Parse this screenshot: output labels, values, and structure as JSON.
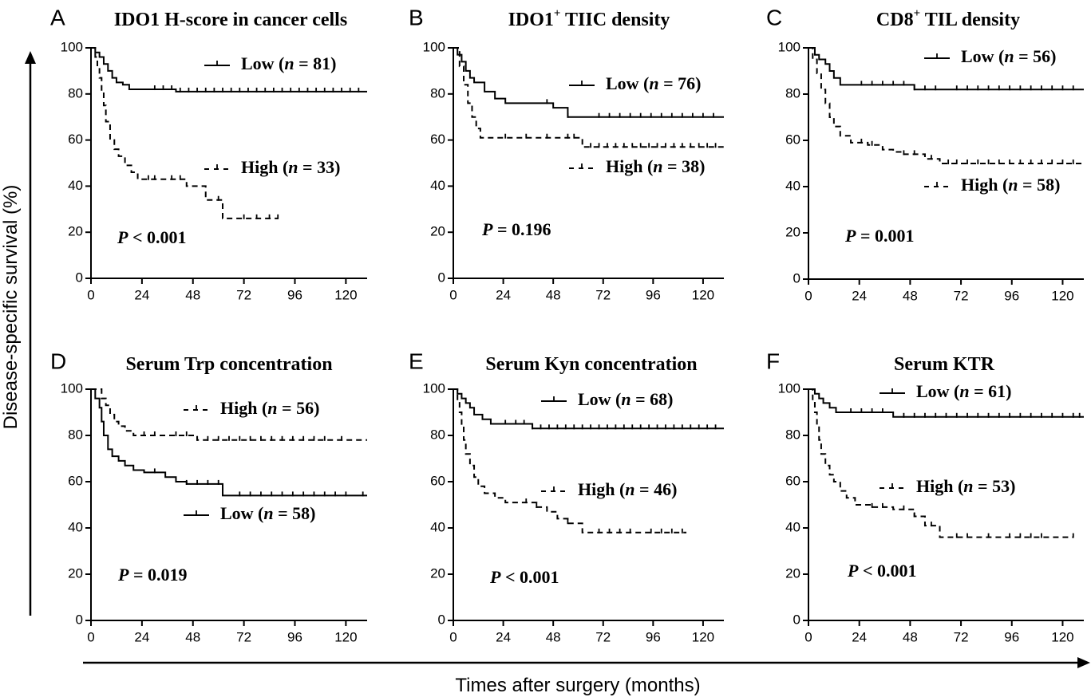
{
  "figure": {
    "y_axis_label": "Disease-specific survival (%)",
    "x_axis_label": "Times after surgery (months)"
  },
  "chart_data": [
    {
      "panel_letter": "A",
      "title": "IDO1 H-score in cancer cells",
      "type": "line",
      "step": true,
      "xlim": [
        0,
        130
      ],
      "ylim": [
        0,
        100
      ],
      "xticks": [
        0,
        24,
        48,
        72,
        96,
        120
      ],
      "yticks": [
        0,
        20,
        40,
        60,
        80,
        100
      ],
      "p_value": {
        "symbol": "P",
        "text": "< 0.001"
      },
      "series": [
        {
          "group": "Low",
          "n": 81,
          "style": "solid",
          "x": [
            0,
            2,
            4,
            6,
            8,
            10,
            12,
            15,
            18,
            40,
            130
          ],
          "y": [
            100,
            98,
            96,
            93,
            90,
            87,
            85,
            84,
            82,
            81,
            81
          ],
          "censors": [
            30,
            34,
            38,
            42,
            46,
            50,
            54,
            58,
            62,
            66,
            70,
            74,
            78,
            82,
            86,
            90,
            94,
            98,
            102,
            106,
            110,
            114,
            118,
            122,
            126
          ]
        },
        {
          "group": "High",
          "n": 33,
          "style": "dashed",
          "x": [
            0,
            2,
            3,
            4,
            5,
            6,
            7,
            9,
            11,
            13,
            16,
            19,
            22,
            25,
            35,
            45,
            54,
            62,
            88
          ],
          "y": [
            100,
            96,
            92,
            87,
            81,
            75,
            68,
            60,
            56,
            53,
            49,
            46,
            43,
            43,
            43,
            40,
            34,
            26,
            26
          ],
          "censors": [
            27,
            30,
            38,
            42,
            60,
            72,
            78,
            84,
            88
          ]
        }
      ]
    },
    {
      "panel_letter": "B",
      "title": "IDO1",
      "title_superscript": "+",
      "title_rest": " TIIC density",
      "type": "line",
      "step": true,
      "xlim": [
        0,
        130
      ],
      "ylim": [
        0,
        100
      ],
      "xticks": [
        0,
        24,
        48,
        72,
        96,
        120
      ],
      "yticks": [
        0,
        20,
        40,
        60,
        80,
        100
      ],
      "p_value": {
        "symbol": "P",
        "text": "= 0.196"
      },
      "series": [
        {
          "group": "Low",
          "n": 76,
          "style": "solid",
          "x": [
            0,
            2,
            4,
            6,
            8,
            10,
            15,
            20,
            25,
            48,
            55,
            130
          ],
          "y": [
            100,
            97,
            94,
            90,
            87,
            85,
            81,
            78,
            76,
            74,
            70,
            70
          ],
          "censors": [
            45,
            55,
            70,
            75,
            80,
            85,
            90,
            95,
            100,
            105,
            110,
            115,
            120,
            125
          ]
        },
        {
          "group": "High",
          "n": 38,
          "style": "dashed",
          "x": [
            0,
            3,
            5,
            7,
            9,
            11,
            13,
            60,
            62,
            130
          ],
          "y": [
            100,
            92,
            84,
            76,
            70,
            65,
            61,
            61,
            57,
            57
          ],
          "censors": [
            25,
            35,
            45,
            55,
            58,
            66,
            70,
            74,
            78,
            82,
            86,
            90,
            94,
            98,
            102,
            106,
            110,
            114,
            118,
            122,
            126
          ]
        }
      ]
    },
    {
      "panel_letter": "C",
      "title": "CD8",
      "title_superscript": "+",
      "title_rest": " TIL density",
      "type": "line",
      "step": true,
      "xlim": [
        0,
        130
      ],
      "ylim": [
        0,
        100
      ],
      "xticks": [
        0,
        24,
        48,
        72,
        96,
        120
      ],
      "yticks": [
        0,
        20,
        40,
        60,
        80,
        100
      ],
      "p_value": {
        "symbol": "P",
        "text": "= 0.001"
      },
      "series": [
        {
          "group": "Low",
          "n": 56,
          "style": "solid",
          "x": [
            0,
            3,
            5,
            8,
            10,
            12,
            15,
            50,
            130
          ],
          "y": [
            100,
            97,
            95,
            93,
            90,
            87,
            84,
            82,
            82
          ],
          "censors": [
            25,
            30,
            35,
            40,
            45,
            50,
            55,
            60,
            70,
            75,
            80,
            85,
            90,
            95,
            100,
            105,
            110,
            115,
            120,
            125
          ]
        },
        {
          "group": "High",
          "n": 58,
          "style": "dashed",
          "x": [
            0,
            2,
            4,
            6,
            8,
            10,
            12,
            15,
            20,
            28,
            35,
            40,
            45,
            55,
            62,
            130
          ],
          "y": [
            100,
            95,
            89,
            82,
            76,
            70,
            66,
            62,
            59,
            58,
            56,
            55,
            54,
            52,
            50,
            50
          ],
          "censors": [
            25,
            30,
            45,
            50,
            58,
            66,
            70,
            75,
            80,
            85,
            90,
            95,
            100,
            105,
            110,
            115,
            120,
            125
          ]
        }
      ]
    },
    {
      "panel_letter": "D",
      "title": "Serum Trp concentration",
      "type": "line",
      "step": true,
      "xlim": [
        0,
        130
      ],
      "ylim": [
        0,
        100
      ],
      "xticks": [
        0,
        24,
        48,
        72,
        96,
        120
      ],
      "yticks": [
        0,
        20,
        40,
        60,
        80,
        100
      ],
      "p_value": {
        "symbol": "P",
        "text": "= 0.019"
      },
      "series": [
        {
          "group": "High",
          "n": 56,
          "style": "dashed",
          "x": [
            0,
            5,
            7,
            9,
            11,
            13,
            16,
            20,
            50,
            130
          ],
          "y": [
            100,
            96,
            93,
            89,
            86,
            84,
            82,
            80,
            78,
            78
          ],
          "censors": [
            25,
            30,
            40,
            45,
            50,
            55,
            60,
            65,
            70,
            75,
            80,
            85,
            90,
            95,
            100,
            105,
            110,
            118
          ]
        },
        {
          "group": "Low",
          "n": 58,
          "style": "solid",
          "x": [
            0,
            2,
            4,
            5,
            6,
            8,
            10,
            13,
            16,
            20,
            25,
            35,
            40,
            45,
            62,
            130
          ],
          "y": [
            100,
            96,
            92,
            86,
            80,
            74,
            71,
            69,
            67,
            65,
            64,
            62,
            60,
            59,
            54,
            54
          ],
          "censors": [
            30,
            45,
            50,
            55,
            60,
            70,
            75,
            80,
            85,
            90,
            95,
            100,
            105,
            110,
            115,
            120,
            128
          ]
        }
      ]
    },
    {
      "panel_letter": "E",
      "title": "Serum Kyn concentration",
      "type": "line",
      "step": true,
      "xlim": [
        0,
        130
      ],
      "ylim": [
        0,
        100
      ],
      "xticks": [
        0,
        24,
        48,
        72,
        96,
        120
      ],
      "yticks": [
        0,
        20,
        40,
        60,
        80,
        100
      ],
      "p_value": {
        "symbol": "P",
        "text": "< 0.001"
      },
      "series": [
        {
          "group": "Low",
          "n": 68,
          "style": "solid",
          "x": [
            0,
            2,
            4,
            6,
            8,
            10,
            14,
            18,
            38,
            130
          ],
          "y": [
            100,
            98,
            96,
            94,
            92,
            89,
            87,
            85,
            83,
            83
          ],
          "censors": [
            25,
            30,
            34,
            38,
            42,
            46,
            50,
            54,
            58,
            62,
            66,
            70,
            74,
            78,
            82,
            86,
            90,
            94,
            98,
            102,
            106,
            110,
            114,
            118,
            122,
            126
          ]
        },
        {
          "group": "High",
          "n": 46,
          "style": "dashed",
          "x": [
            0,
            2,
            3,
            4,
            5,
            6,
            8,
            10,
            12,
            15,
            20,
            25,
            40,
            45,
            50,
            55,
            62,
            112
          ],
          "y": [
            100,
            95,
            90,
            84,
            78,
            72,
            67,
            62,
            58,
            55,
            53,
            51,
            49,
            47,
            44,
            42,
            38,
            38
          ],
          "censors": [
            35,
            40,
            55,
            70,
            75,
            80,
            85,
            95,
            100,
            105,
            110
          ]
        }
      ]
    },
    {
      "panel_letter": "F",
      "title": "Serum KTR",
      "type": "line",
      "step": true,
      "xlim": [
        0,
        130
      ],
      "ylim": [
        0,
        100
      ],
      "xticks": [
        0,
        24,
        48,
        72,
        96,
        120
      ],
      "yticks": [
        0,
        20,
        40,
        60,
        80,
        100
      ],
      "p_value": {
        "symbol": "P",
        "text": "< 0.001"
      },
      "series": [
        {
          "group": "Low",
          "n": 61,
          "style": "solid",
          "x": [
            0,
            3,
            5,
            7,
            10,
            13,
            40,
            130
          ],
          "y": [
            100,
            98,
            96,
            94,
            92,
            90,
            88,
            88
          ],
          "censors": [
            20,
            25,
            30,
            35,
            45,
            50,
            55,
            60,
            65,
            70,
            75,
            80,
            85,
            90,
            95,
            100,
            105,
            110,
            115,
            120,
            125,
            128
          ]
        },
        {
          "group": "High",
          "n": 53,
          "style": "dashed",
          "x": [
            0,
            2,
            3,
            4,
            5,
            6,
            8,
            10,
            12,
            15,
            18,
            22,
            30,
            40,
            50,
            55,
            62,
            125
          ],
          "y": [
            100,
            95,
            90,
            84,
            78,
            72,
            67,
            63,
            60,
            56,
            53,
            50,
            49,
            48,
            45,
            41,
            36,
            36
          ],
          "censors": [
            30,
            35,
            45,
            50,
            58,
            70,
            75,
            85,
            95,
            100,
            105,
            110,
            125
          ]
        }
      ]
    }
  ]
}
